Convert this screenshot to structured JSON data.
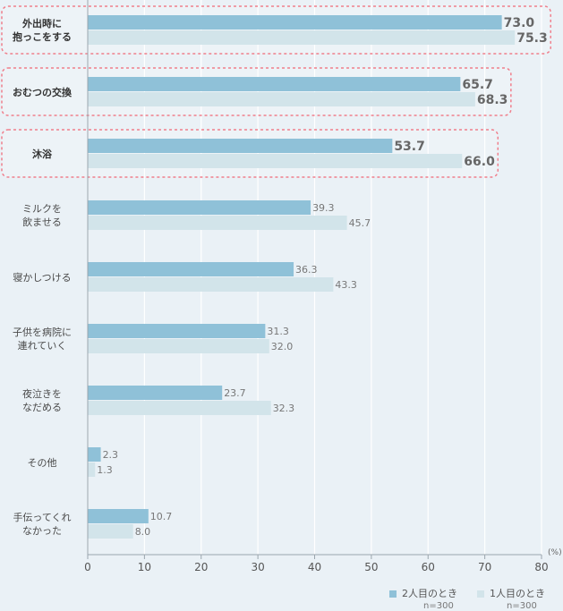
{
  "chart_data": {
    "type": "bar",
    "orientation": "horizontal",
    "categories": [
      "外出時に\n抱っこをする",
      "おむつの交換",
      "沐浴",
      "ミルクを\n飲ませる",
      "寝かしつける",
      "子供を病院に\n連れていく",
      "夜泣きを\nなだめる",
      "その他",
      "手伝ってくれ\nなかった"
    ],
    "highlighted": [
      0,
      1,
      2
    ],
    "series": [
      {
        "name": "2人目のとき",
        "n": "n=300",
        "color": "#8fc1d8",
        "values": [
          73.0,
          65.7,
          53.7,
          39.3,
          36.3,
          31.3,
          23.7,
          2.3,
          10.7
        ]
      },
      {
        "name": "1人目のとき",
        "n": "n=300",
        "color": "#d2e4ea",
        "values": [
          75.3,
          68.3,
          66.0,
          45.7,
          43.3,
          32.0,
          32.3,
          1.3,
          8.0
        ]
      }
    ],
    "xlim": [
      0,
      80
    ],
    "xticks": [
      0,
      10,
      20,
      30,
      40,
      50,
      60,
      70,
      80
    ],
    "unit": "(%)",
    "grid": true,
    "legend_position": "bottom-right",
    "highlight_color": "#f07f8c"
  }
}
